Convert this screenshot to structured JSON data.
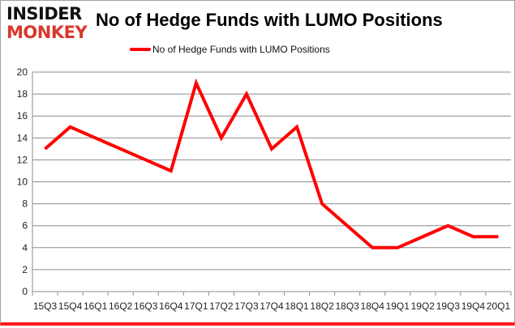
{
  "logo": {
    "line1": "INSIDER",
    "line2": "MONKEY"
  },
  "chart_data": {
    "type": "line",
    "title": "No of Hedge Funds with LUMO Positions",
    "categories": [
      "15Q3",
      "15Q4",
      "16Q1",
      "16Q2",
      "16Q3",
      "16Q4",
      "17Q1",
      "17Q2",
      "17Q3",
      "17Q4",
      "18Q1",
      "18Q2",
      "18Q3",
      "18Q4",
      "19Q1",
      "19Q2",
      "19Q3",
      "19Q4",
      "20Q1"
    ],
    "series": [
      {
        "name": "No of Hedge Funds with LUMO Positions",
        "values": [
          13,
          15,
          14,
          13,
          12,
          11,
          19,
          14,
          18,
          13,
          15,
          8,
          6,
          4,
          4,
          5,
          6,
          5,
          5
        ],
        "color": "#ff0000"
      }
    ],
    "ylim": [
      0,
      20
    ],
    "yticks": [
      0,
      2,
      4,
      6,
      8,
      10,
      12,
      14,
      16,
      18,
      20
    ],
    "grid": true,
    "legend": "top-center",
    "xlabel": "",
    "ylabel": ""
  }
}
